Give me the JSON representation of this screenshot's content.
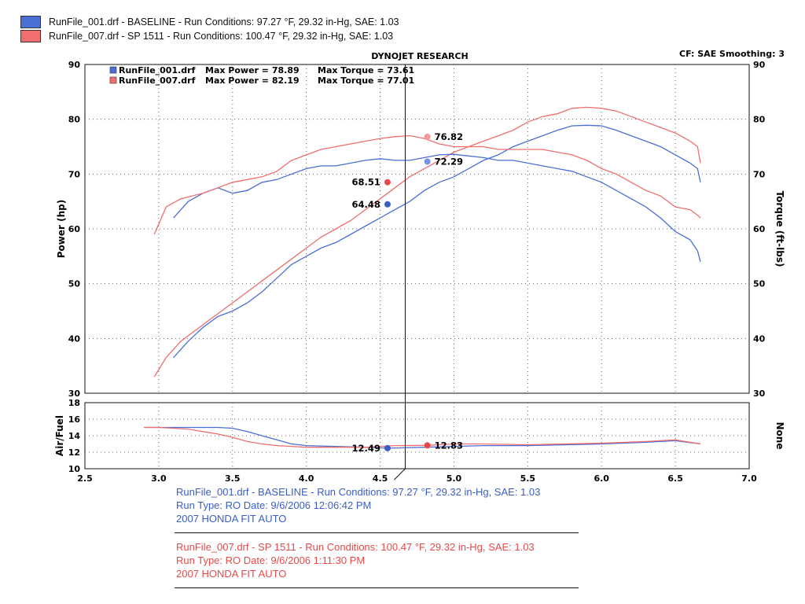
{
  "legend": [
    {
      "label": "RunFile_001.drf - BASELINE  -  Run Conditions: 97.27 °F, 29.32 in-Hg, SAE: 1.03",
      "color": "#4a6fd6"
    },
    {
      "label": "RunFile_007.drf - SP 1511  -  Run Conditions: 100.47 °F, 29.32 in-Hg, SAE: 1.03",
      "color": "#f06e6e"
    }
  ],
  "header": {
    "title": "DYNOJET RESEARCH",
    "settings": "CF: SAE  Smoothing: 3"
  },
  "chart_legend": [
    {
      "file": "RunFile_001.drf",
      "power_text": "Max Power = 78.89",
      "torque_text": "Max Torque = 73.61"
    },
    {
      "file": "RunFile_007.drf",
      "power_text": "Max Power = 82.19",
      "torque_text": "Max Torque = 77.01"
    }
  ],
  "run_info": [
    {
      "line1": "RunFile_001.drf - BASELINE  -  Run Conditions: 97.27 °F, 29.32 in-Hg, SAE: 1.03",
      "line2": "Run Type: RO  Date: 9/6/2006 12:06:42 PM",
      "line3": "2007 HONDA FIT AUTO",
      "color": "#3a5ec8"
    },
    {
      "line1": "RunFile_007.drf - SP 1511  -  Run Conditions: 100.47 °F, 29.32 in-Hg, SAE: 1.03",
      "line2": "Run Type: RO  Date: 9/6/2006 1:11:30 PM",
      "line3": "2007 HONDA FIT AUTO",
      "color": "#e84a4a"
    }
  ],
  "chart_data": [
    {
      "type": "line",
      "xlim": [
        2.5,
        7.0
      ],
      "ylim": [
        30,
        90
      ],
      "y2lim": [
        30,
        90
      ],
      "xticks": [
        "2.5",
        "3.0",
        "3.5",
        "4.0",
        "4.5",
        "5.0",
        "5.5",
        "6.0",
        "6.5",
        "7.0"
      ],
      "yticks": [
        "30",
        "40",
        "50",
        "60",
        "70",
        "80",
        "90"
      ],
      "ylabel": "Power (hp)",
      "y2label": "Torque (ft-lbs)",
      "cursor_x": 4.67,
      "series": [
        {
          "name": "Power",
          "run": "BASELINE",
          "color": "#4a6fd6",
          "x": [
            3.1,
            3.2,
            3.3,
            3.4,
            3.5,
            3.6,
            3.7,
            3.8,
            3.9,
            4.0,
            4.1,
            4.2,
            4.3,
            4.4,
            4.5,
            4.6,
            4.7,
            4.8,
            4.9,
            5.0,
            5.1,
            5.2,
            5.3,
            5.4,
            5.5,
            5.6,
            5.7,
            5.8,
            5.9,
            6.0,
            6.1,
            6.2,
            6.3,
            6.4,
            6.5,
            6.6,
            6.65,
            6.67
          ],
          "y": [
            36.5,
            39.5,
            42.0,
            44.0,
            45.0,
            46.5,
            48.5,
            51.0,
            53.5,
            55.0,
            56.5,
            57.5,
            59.0,
            60.5,
            62.0,
            63.5,
            65.0,
            67.0,
            68.5,
            69.5,
            71.0,
            72.5,
            73.5,
            75.0,
            76.0,
            77.0,
            78.0,
            78.8,
            78.9,
            78.8,
            78.0,
            77.0,
            76.0,
            75.0,
            73.5,
            72.0,
            71.0,
            68.5
          ]
        },
        {
          "name": "Power",
          "run": "SP 1511",
          "color": "#f06e6e",
          "x": [
            2.97,
            3.05,
            3.15,
            3.3,
            3.4,
            3.5,
            3.6,
            3.7,
            3.8,
            3.9,
            4.0,
            4.1,
            4.2,
            4.3,
            4.4,
            4.5,
            4.6,
            4.7,
            4.8,
            4.9,
            5.0,
            5.1,
            5.2,
            5.3,
            5.4,
            5.5,
            5.6,
            5.7,
            5.8,
            5.9,
            6.0,
            6.1,
            6.2,
            6.3,
            6.4,
            6.5,
            6.6,
            6.65,
            6.67
          ],
          "y": [
            33.0,
            36.5,
            39.5,
            42.5,
            44.5,
            46.5,
            48.5,
            50.5,
            52.5,
            54.5,
            56.5,
            58.5,
            60.0,
            61.5,
            63.5,
            65.5,
            67.5,
            69.5,
            71.0,
            72.5,
            74.0,
            75.0,
            76.0,
            77.0,
            78.0,
            79.5,
            80.5,
            81.0,
            82.0,
            82.19,
            82.0,
            81.5,
            80.5,
            79.5,
            78.5,
            77.5,
            76.0,
            75.0,
            72.0
          ]
        },
        {
          "name": "Torque",
          "run": "BASELINE",
          "color": "#4a6fd6",
          "axis": "y2",
          "x": [
            3.1,
            3.2,
            3.3,
            3.4,
            3.5,
            3.6,
            3.7,
            3.8,
            3.9,
            4.0,
            4.1,
            4.2,
            4.3,
            4.4,
            4.5,
            4.6,
            4.7,
            4.8,
            4.9,
            5.0,
            5.1,
            5.2,
            5.3,
            5.4,
            5.5,
            5.6,
            5.7,
            5.8,
            5.9,
            6.0,
            6.1,
            6.2,
            6.3,
            6.4,
            6.5,
            6.6,
            6.65,
            6.67
          ],
          "y": [
            62.0,
            65.0,
            66.5,
            67.5,
            66.5,
            67.0,
            68.5,
            69.0,
            70.0,
            71.0,
            71.5,
            71.5,
            72.0,
            72.5,
            72.8,
            72.5,
            72.5,
            73.0,
            73.5,
            73.61,
            73.3,
            73.0,
            72.5,
            72.5,
            72.0,
            71.5,
            71.0,
            70.5,
            69.5,
            68.5,
            67.0,
            65.5,
            64.0,
            62.0,
            59.5,
            58.0,
            56.0,
            54.0
          ]
        },
        {
          "name": "Torque",
          "run": "SP 1511",
          "color": "#f06e6e",
          "axis": "y2",
          "x": [
            2.97,
            3.05,
            3.15,
            3.3,
            3.4,
            3.5,
            3.6,
            3.7,
            3.8,
            3.9,
            4.0,
            4.1,
            4.2,
            4.3,
            4.4,
            4.5,
            4.6,
            4.7,
            4.8,
            4.9,
            5.0,
            5.1,
            5.2,
            5.3,
            5.4,
            5.5,
            5.6,
            5.7,
            5.8,
            5.9,
            6.0,
            6.1,
            6.2,
            6.3,
            6.4,
            6.5,
            6.6,
            6.65,
            6.67
          ],
          "y": [
            59.0,
            64.0,
            65.5,
            66.5,
            67.5,
            68.5,
            69.0,
            69.5,
            70.5,
            72.5,
            73.5,
            74.5,
            75.0,
            75.5,
            76.0,
            76.5,
            76.82,
            77.01,
            76.5,
            75.5,
            75.0,
            75.0,
            75.0,
            74.5,
            74.5,
            74.5,
            74.5,
            74.0,
            73.5,
            72.5,
            71.0,
            70.0,
            68.5,
            67.0,
            66.0,
            64.0,
            63.5,
            62.5,
            62.0
          ]
        }
      ],
      "markers": [
        {
          "x": 4.82,
          "y": 76.82,
          "label": "76.82",
          "side": "right",
          "color": "#f29a9a"
        },
        {
          "x": 4.82,
          "y": 72.29,
          "label": "72.29",
          "side": "right",
          "color": "#7a93e0"
        },
        {
          "x": 4.55,
          "y": 68.51,
          "label": "68.51",
          "side": "left",
          "color": "#e84a4a"
        },
        {
          "x": 4.55,
          "y": 64.48,
          "label": "64.48",
          "side": "left",
          "color": "#3a5ec8"
        }
      ]
    },
    {
      "type": "line",
      "xlim": [
        2.5,
        7.0
      ],
      "ylim": [
        10,
        18
      ],
      "xticks": [
        "2.5",
        "3.0",
        "3.5",
        "4.0",
        "4.5",
        "5.0",
        "5.5",
        "6.0",
        "6.5",
        "7.0"
      ],
      "yticks": [
        "10",
        "12",
        "14",
        "16",
        "18"
      ],
      "ylabel": "Air/Fuel",
      "y2label": "None",
      "series": [
        {
          "name": "Air/Fuel",
          "run": "BASELINE",
          "color": "#4a6fd6",
          "x": [
            2.9,
            3.0,
            3.2,
            3.3,
            3.4,
            3.5,
            3.6,
            3.7,
            3.8,
            3.9,
            4.0,
            4.2,
            4.4,
            4.55,
            4.8,
            5.0,
            5.2,
            5.5,
            6.0,
            6.3,
            6.5,
            6.67
          ],
          "y": [
            15.0,
            15.0,
            15.0,
            15.0,
            15.0,
            14.9,
            14.5,
            14.0,
            13.5,
            13.0,
            12.8,
            12.7,
            12.6,
            12.49,
            12.6,
            12.7,
            12.8,
            12.8,
            13.0,
            13.2,
            13.4,
            13.0
          ]
        },
        {
          "name": "Air/Fuel",
          "run": "SP 1511",
          "color": "#f06e6e",
          "x": [
            2.9,
            3.0,
            3.1,
            3.2,
            3.3,
            3.4,
            3.5,
            3.6,
            3.7,
            3.8,
            3.9,
            4.0,
            4.2,
            4.4,
            4.6,
            4.82,
            5.0,
            5.2,
            5.5,
            6.0,
            6.3,
            6.5,
            6.67
          ],
          "y": [
            15.0,
            15.0,
            14.9,
            14.8,
            14.5,
            14.2,
            13.8,
            13.3,
            13.0,
            12.8,
            12.7,
            12.6,
            12.6,
            12.6,
            12.8,
            12.83,
            13.0,
            13.0,
            12.9,
            13.1,
            13.3,
            13.5,
            13.0
          ]
        }
      ],
      "markers": [
        {
          "x": 4.55,
          "y": 12.49,
          "label": "12.49",
          "side": "left",
          "color": "#3a5ec8"
        },
        {
          "x": 4.82,
          "y": 12.83,
          "label": "12.83",
          "side": "right",
          "color": "#e84a4a"
        }
      ]
    }
  ]
}
